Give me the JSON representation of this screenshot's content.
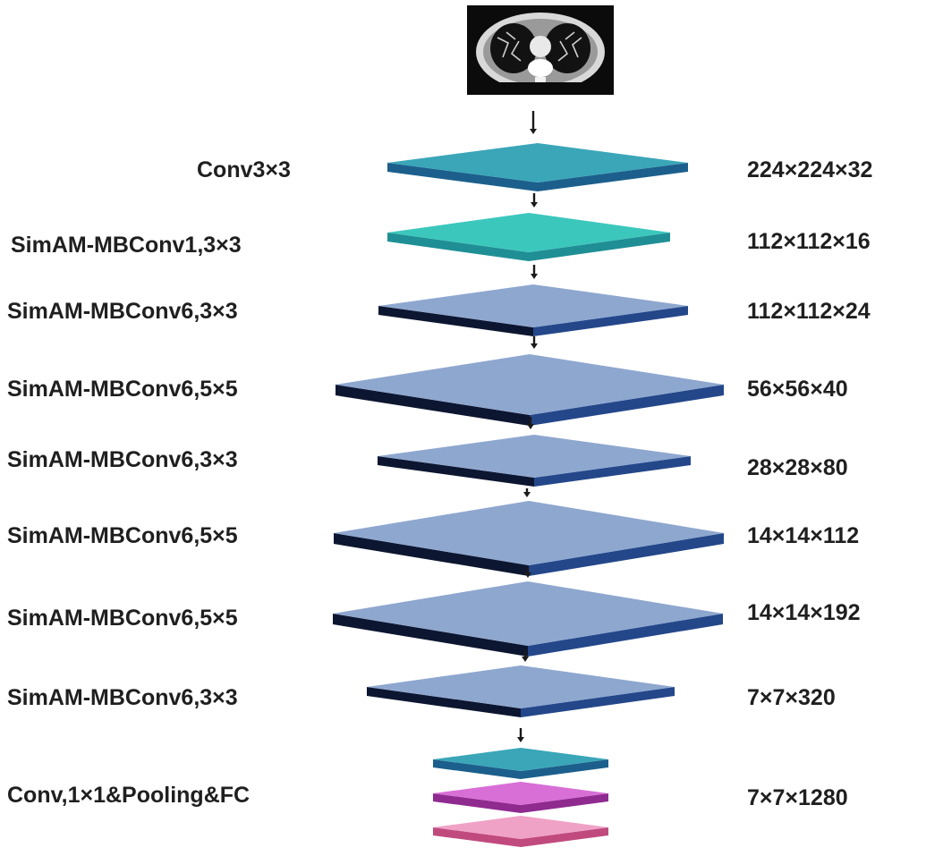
{
  "input_image": {
    "icon": "chest-ct-scan-icon"
  },
  "layers": [
    {
      "name": "Conv3×3",
      "output": "224×224×32"
    },
    {
      "name": "SimAM-MBConv1,3×3",
      "output": "112×112×16"
    },
    {
      "name": "SimAM-MBConv6,3×3",
      "output": "112×112×24"
    },
    {
      "name": "SimAM-MBConv6,5×5",
      "output": "56×56×40"
    },
    {
      "name": "SimAM-MBConv6,3×3",
      "output": "28×28×80"
    },
    {
      "name": "SimAM-MBConv6,5×5",
      "output": "14×14×112"
    },
    {
      "name": "SimAM-MBConv6,5×5",
      "output": "14×14×192"
    },
    {
      "name": "SimAM-MBConv6,3×3",
      "output": "7×7×320"
    },
    {
      "name": "Conv,1×1&Pooling&FC",
      "output": "7×7×1280"
    }
  ],
  "colors": {
    "teal_top": "#3aa6b8",
    "teal_front": "#1c5f8c",
    "cyan_top": "#3cc7bd",
    "cyan_front": "#1f8f95",
    "blue_top": "#8ea7cf",
    "blue_front": "#24478a",
    "blue_back": "#0d1630",
    "magenta_top": "#d86fd6",
    "magenta_front": "#8f2a8f",
    "pink_top": "#f0a2c6",
    "pink_front": "#c04a7e",
    "arrow": "#1a1a1a"
  }
}
